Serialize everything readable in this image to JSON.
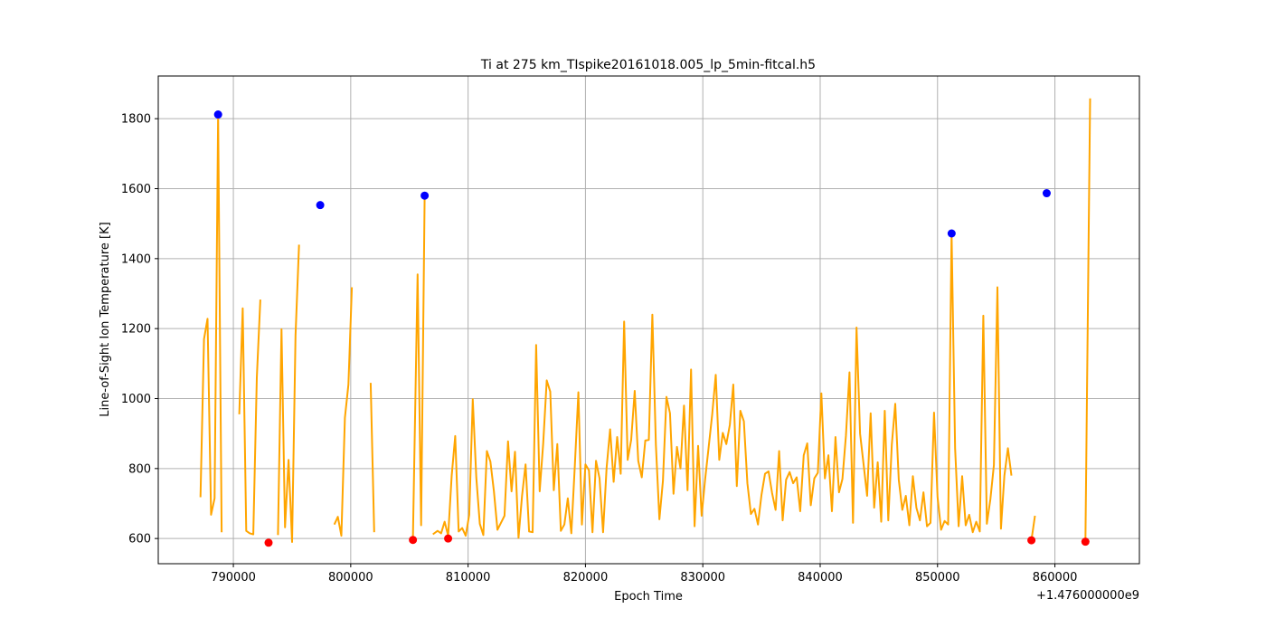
{
  "chart_data": {
    "type": "line",
    "title": "Ti at 275 km_TIspike20161018.005_lp_5min-fitcal.h5",
    "xlabel": "Epoch Time",
    "ylabel": "Line-of-Sight Ion Temperature [K]",
    "x_offset_label": "+1.476000000e9",
    "xlim": [
      783600,
      867200
    ],
    "ylim": [
      528,
      1922
    ],
    "xticks": [
      790000,
      800000,
      810000,
      820000,
      830000,
      840000,
      850000,
      860000
    ],
    "xtick_labels": [
      "790000",
      "800000",
      "810000",
      "820000",
      "830000",
      "840000",
      "850000",
      "860000"
    ],
    "yticks": [
      600,
      800,
      1000,
      1200,
      1400,
      1600,
      1800
    ],
    "ytick_labels": [
      "600",
      "800",
      "1000",
      "1200",
      "1400",
      "1600",
      "1800"
    ],
    "grid": true,
    "colors": {
      "line": "#FFA500",
      "max_marker": "#0000FF",
      "min_marker": "#FF0000",
      "grid": "#b0b0b0"
    },
    "series": [
      {
        "style": "line",
        "color": "#FFA500",
        "segments": [
          [
            [
              787200,
              718
            ],
            [
              787500,
              1170
            ],
            [
              787800,
              1228
            ],
            [
              788100,
              668
            ],
            [
              788400,
              715
            ],
            [
              788700,
              1812
            ],
            [
              789000,
              618
            ]
          ],
          [
            [
              790500,
              955
            ],
            [
              790800,
              1258
            ],
            [
              791100,
              622
            ],
            [
              791400,
              615
            ],
            [
              791700,
              612
            ],
            [
              792000,
              1060
            ],
            [
              792300,
              1283
            ]
          ],
          [
            [
              792900,
              588
            ],
            [
              793200,
              592
            ]
          ],
          [
            [
              793800,
              610
            ],
            [
              794100,
              1198
            ],
            [
              794400,
              632
            ],
            [
              794700,
              825
            ],
            [
              795000,
              590
            ],
            [
              795300,
              1180
            ],
            [
              795600,
              1440
            ]
          ],
          [
            [
              798600,
              640
            ],
            [
              798900,
              662
            ],
            [
              799200,
              608
            ],
            [
              799500,
              945
            ],
            [
              799800,
              1040
            ],
            [
              800100,
              1318
            ]
          ],
          [
            [
              801700,
              1045
            ],
            [
              802000,
              618
            ]
          ],
          [
            [
              805300,
              598
            ],
            [
              805700,
              1355
            ],
            [
              806000,
              638
            ],
            [
              806300,
              1580
            ]
          ],
          [
            [
              807000,
              612
            ],
            [
              807400,
              622
            ],
            [
              807700,
              615
            ],
            [
              808000,
              648
            ],
            [
              808300,
              608
            ],
            [
              808600,
              780
            ],
            [
              808900,
              893
            ],
            [
              809200,
              620
            ],
            [
              809500,
              630
            ],
            [
              809800,
              608
            ],
            [
              810100,
              668
            ],
            [
              810400,
              998
            ],
            [
              810700,
              775
            ],
            [
              811000,
              642
            ],
            [
              811300,
              610
            ],
            [
              811600,
              850
            ],
            [
              811900,
              820
            ],
            [
              812200,
              735
            ],
            [
              812500,
              625
            ],
            [
              812800,
              645
            ],
            [
              813100,
              665
            ],
            [
              813400,
              878
            ],
            [
              813700,
              735
            ],
            [
              814000,
              848
            ],
            [
              814300,
              602
            ],
            [
              814600,
              722
            ],
            [
              814900,
              812
            ],
            [
              815200,
              620
            ],
            [
              815500,
              618
            ],
            [
              815800,
              1153
            ],
            [
              816100,
              735
            ],
            [
              816400,
              872
            ],
            [
              816700,
              1052
            ],
            [
              817000,
              1020
            ],
            [
              817300,
              738
            ],
            [
              817600,
              870
            ],
            [
              817900,
              622
            ],
            [
              818200,
              640
            ],
            [
              818500,
              715
            ],
            [
              818800,
              615
            ],
            [
              819100,
              810
            ],
            [
              819400,
              1018
            ],
            [
              819700,
              640
            ],
            [
              820000,
              812
            ],
            [
              820300,
              795
            ],
            [
              820600,
              618
            ],
            [
              820900,
              822
            ],
            [
              821200,
              772
            ],
            [
              821500,
              618
            ],
            [
              821800,
              802
            ],
            [
              822100,
              912
            ],
            [
              822400,
              762
            ],
            [
              822700,
              890
            ],
            [
              823000,
              785
            ],
            [
              823300,
              1220
            ],
            [
              823600,
              825
            ],
            [
              823900,
              882
            ],
            [
              824200,
              1022
            ],
            [
              824500,
              822
            ],
            [
              824800,
              775
            ],
            [
              825100,
              880
            ],
            [
              825400,
              882
            ],
            [
              825700,
              1240
            ],
            [
              826000,
              868
            ],
            [
              826300,
              655
            ],
            [
              826600,
              765
            ],
            [
              826900,
              1005
            ],
            [
              827200,
              958
            ],
            [
              827500,
              728
            ],
            [
              827800,
              862
            ],
            [
              828100,
              800
            ],
            [
              828400,
              980
            ],
            [
              828700,
              738
            ],
            [
              829000,
              1083
            ],
            [
              829300,
              635
            ],
            [
              829600,
              865
            ],
            [
              829900,
              665
            ],
            [
              830200,
              770
            ],
            [
              830500,
              862
            ],
            [
              830800,
              955
            ],
            [
              831100,
              1068
            ],
            [
              831400,
              825
            ],
            [
              831700,
              902
            ],
            [
              832000,
              870
            ],
            [
              832300,
              925
            ],
            [
              832600,
              1040
            ],
            [
              832900,
              750
            ],
            [
              833200,
              965
            ],
            [
              833500,
              935
            ],
            [
              833800,
              758
            ],
            [
              834100,
              670
            ],
            [
              834400,
              685
            ],
            [
              834700,
              640
            ],
            [
              835000,
              725
            ],
            [
              835300,
              785
            ],
            [
              835600,
              792
            ],
            [
              835900,
              730
            ],
            [
              836200,
              682
            ],
            [
              836500,
              850
            ],
            [
              836800,
              652
            ],
            [
              837100,
              768
            ],
            [
              837400,
              790
            ],
            [
              837700,
              758
            ],
            [
              838000,
              775
            ],
            [
              838300,
              678
            ],
            [
              838600,
              838
            ],
            [
              838900,
              872
            ],
            [
              839200,
              695
            ],
            [
              839500,
              772
            ],
            [
              839800,
              788
            ],
            [
              840100,
              1015
            ],
            [
              840400,
              772
            ],
            [
              840700,
              838
            ],
            [
              841000,
              678
            ],
            [
              841300,
              890
            ],
            [
              841600,
              732
            ],
            [
              841900,
              770
            ],
            [
              842200,
              895
            ],
            [
              842500,
              1075
            ],
            [
              842800,
              645
            ],
            [
              843100,
              1203
            ],
            [
              843400,
              900
            ],
            [
              843700,
              812
            ],
            [
              844000,
              722
            ],
            [
              844300,
              958
            ],
            [
              844600,
              688
            ],
            [
              844900,
              818
            ],
            [
              845200,
              648
            ],
            [
              845500,
              965
            ],
            [
              845800,
              652
            ],
            [
              846100,
              868
            ],
            [
              846400,
              985
            ],
            [
              846700,
              768
            ],
            [
              847000,
              682
            ],
            [
              847300,
              722
            ],
            [
              847600,
              638
            ],
            [
              847900,
              778
            ],
            [
              848200,
              688
            ],
            [
              848500,
              652
            ],
            [
              848800,
              732
            ],
            [
              849100,
              635
            ],
            [
              849400,
              645
            ],
            [
              849700,
              960
            ],
            [
              850000,
              718
            ],
            [
              850300,
              625
            ],
            [
              850600,
              650
            ],
            [
              850900,
              640
            ],
            [
              851200,
              1472
            ],
            [
              851500,
              858
            ],
            [
              851800,
              635
            ],
            [
              852100,
              778
            ],
            [
              852400,
              638
            ],
            [
              852700,
              668
            ],
            [
              853000,
              618
            ],
            [
              853300,
              648
            ],
            [
              853600,
              620
            ],
            [
              853900,
              1237
            ],
            [
              854200,
              642
            ],
            [
              854500,
              712
            ],
            [
              854800,
              810
            ],
            [
              855100,
              1318
            ],
            [
              855400,
              628
            ],
            [
              855700,
              780
            ],
            [
              856000,
              858
            ],
            [
              856300,
              780
            ]
          ],
          [
            [
              858000,
              595
            ],
            [
              858300,
              665
            ]
          ],
          [
            [
              862600,
              590
            ],
            [
              863000,
              1858
            ]
          ]
        ]
      },
      {
        "style": "scatter",
        "color": "#0000FF",
        "points": [
          [
            788700,
            1812
          ],
          [
            797400,
            1553
          ],
          [
            806300,
            1580
          ],
          [
            851200,
            1472
          ],
          [
            859300,
            1587
          ]
        ]
      },
      {
        "style": "scatter",
        "color": "#FF0000",
        "points": [
          [
            793000,
            588
          ],
          [
            805300,
            596
          ],
          [
            808300,
            600
          ],
          [
            858000,
            595
          ],
          [
            862600,
            591
          ]
        ]
      }
    ]
  }
}
